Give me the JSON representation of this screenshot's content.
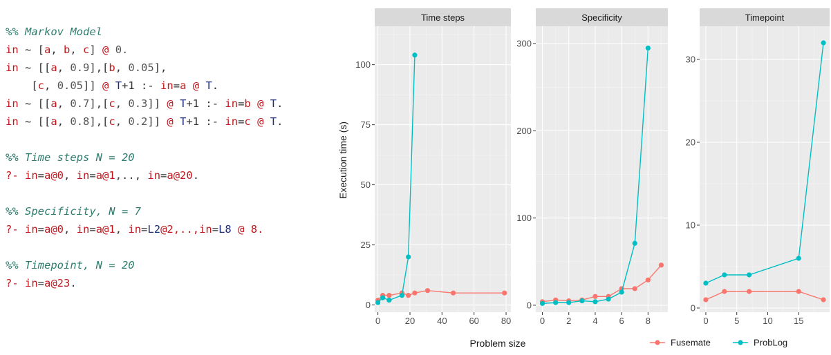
{
  "code": {
    "lines": [
      [
        {
          "t": "%% Markov Model",
          "k": "comment"
        }
      ],
      [
        {
          "t": "in",
          "k": "keyword"
        },
        {
          "t": " ~ [",
          "k": "plain"
        },
        {
          "t": "a",
          "k": "atom"
        },
        {
          "t": ", ",
          "k": "plain"
        },
        {
          "t": "b",
          "k": "atom"
        },
        {
          "t": ", ",
          "k": "plain"
        },
        {
          "t": "c",
          "k": "atom"
        },
        {
          "t": "] ",
          "k": "plain"
        },
        {
          "t": "@",
          "k": "keyword"
        },
        {
          "t": " 0.",
          "k": "number"
        }
      ],
      [
        {
          "t": "in",
          "k": "keyword"
        },
        {
          "t": " ~ [[",
          "k": "plain"
        },
        {
          "t": "a",
          "k": "atom"
        },
        {
          "t": ", ",
          "k": "plain"
        },
        {
          "t": "0.9",
          "k": "number"
        },
        {
          "t": "],[",
          "k": "plain"
        },
        {
          "t": "b",
          "k": "atom"
        },
        {
          "t": ", ",
          "k": "plain"
        },
        {
          "t": "0.05",
          "k": "number"
        },
        {
          "t": "],",
          "k": "plain"
        }
      ],
      [
        {
          "t": "    [",
          "k": "plain"
        },
        {
          "t": "c",
          "k": "atom"
        },
        {
          "t": ", ",
          "k": "plain"
        },
        {
          "t": "0.05",
          "k": "number"
        },
        {
          "t": "]] ",
          "k": "plain"
        },
        {
          "t": "@",
          "k": "keyword"
        },
        {
          "t": " ",
          "k": "plain"
        },
        {
          "t": "T",
          "k": "var"
        },
        {
          "t": "+1 :- ",
          "k": "plain"
        },
        {
          "t": "in",
          "k": "keyword"
        },
        {
          "t": "=",
          "k": "plain"
        },
        {
          "t": "a",
          "k": "atom"
        },
        {
          "t": " ",
          "k": "plain"
        },
        {
          "t": "@",
          "k": "keyword"
        },
        {
          "t": " ",
          "k": "plain"
        },
        {
          "t": "T",
          "k": "var"
        },
        {
          "t": ".",
          "k": "plain"
        }
      ],
      [
        {
          "t": "in",
          "k": "keyword"
        },
        {
          "t": " ~ [[",
          "k": "plain"
        },
        {
          "t": "a",
          "k": "atom"
        },
        {
          "t": ", ",
          "k": "plain"
        },
        {
          "t": "0.7",
          "k": "number"
        },
        {
          "t": "],[",
          "k": "plain"
        },
        {
          "t": "c",
          "k": "atom"
        },
        {
          "t": ", ",
          "k": "plain"
        },
        {
          "t": "0.3",
          "k": "number"
        },
        {
          "t": "]] ",
          "k": "plain"
        },
        {
          "t": "@",
          "k": "keyword"
        },
        {
          "t": " ",
          "k": "plain"
        },
        {
          "t": "T",
          "k": "var"
        },
        {
          "t": "+1 :- ",
          "k": "plain"
        },
        {
          "t": "in",
          "k": "keyword"
        },
        {
          "t": "=",
          "k": "plain"
        },
        {
          "t": "b",
          "k": "atom"
        },
        {
          "t": " ",
          "k": "plain"
        },
        {
          "t": "@",
          "k": "keyword"
        },
        {
          "t": " ",
          "k": "plain"
        },
        {
          "t": "T",
          "k": "var"
        },
        {
          "t": ".",
          "k": "plain"
        }
      ],
      [
        {
          "t": "in",
          "k": "keyword"
        },
        {
          "t": " ~ [[",
          "k": "plain"
        },
        {
          "t": "a",
          "k": "atom"
        },
        {
          "t": ", ",
          "k": "plain"
        },
        {
          "t": "0.8",
          "k": "number"
        },
        {
          "t": "],[",
          "k": "plain"
        },
        {
          "t": "c",
          "k": "atom"
        },
        {
          "t": ", ",
          "k": "plain"
        },
        {
          "t": "0.2",
          "k": "number"
        },
        {
          "t": "]] ",
          "k": "plain"
        },
        {
          "t": "@",
          "k": "keyword"
        },
        {
          "t": " ",
          "k": "plain"
        },
        {
          "t": "T",
          "k": "var"
        },
        {
          "t": "+1 :- ",
          "k": "plain"
        },
        {
          "t": "in",
          "k": "keyword"
        },
        {
          "t": "=",
          "k": "plain"
        },
        {
          "t": "c",
          "k": "atom"
        },
        {
          "t": " ",
          "k": "plain"
        },
        {
          "t": "@",
          "k": "keyword"
        },
        {
          "t": " ",
          "k": "plain"
        },
        {
          "t": "T",
          "k": "var"
        },
        {
          "t": ".",
          "k": "plain"
        }
      ],
      [],
      [
        {
          "t": "%% Time steps N = 20",
          "k": "comment"
        }
      ],
      [
        {
          "t": "?- ",
          "k": "keyword"
        },
        {
          "t": "in",
          "k": "keyword"
        },
        {
          "t": "=",
          "k": "plain"
        },
        {
          "t": "a@0",
          "k": "atom"
        },
        {
          "t": ", ",
          "k": "plain"
        },
        {
          "t": "in",
          "k": "keyword"
        },
        {
          "t": "=",
          "k": "plain"
        },
        {
          "t": "a@1",
          "k": "atom"
        },
        {
          "t": ",.., ",
          "k": "plain"
        },
        {
          "t": "in",
          "k": "keyword"
        },
        {
          "t": "=",
          "k": "plain"
        },
        {
          "t": "a@20",
          "k": "atom"
        },
        {
          "t": ".",
          "k": "plain"
        }
      ],
      [],
      [
        {
          "t": "%% Specificity, N = 7",
          "k": "comment"
        }
      ],
      [
        {
          "t": "?- ",
          "k": "keyword"
        },
        {
          "t": "in",
          "k": "keyword"
        },
        {
          "t": "=",
          "k": "plain"
        },
        {
          "t": "a@0",
          "k": "atom"
        },
        {
          "t": ", ",
          "k": "plain"
        },
        {
          "t": "in",
          "k": "keyword"
        },
        {
          "t": "=",
          "k": "plain"
        },
        {
          "t": "a@1",
          "k": "atom"
        },
        {
          "t": ", ",
          "k": "plain"
        },
        {
          "t": "in",
          "k": "keyword"
        },
        {
          "t": "=",
          "k": "plain"
        },
        {
          "t": "L2",
          "k": "var"
        },
        {
          "t": "@2,..,",
          "k": "atom"
        },
        {
          "t": "in",
          "k": "keyword"
        },
        {
          "t": "=",
          "k": "plain"
        },
        {
          "t": "L8",
          "k": "var"
        },
        {
          "t": " @ 8.",
          "k": "atom"
        }
      ],
      [],
      [
        {
          "t": "%% Timepoint, N = 20",
          "k": "comment"
        }
      ],
      [
        {
          "t": "?- ",
          "k": "keyword"
        },
        {
          "t": "in",
          "k": "keyword"
        },
        {
          "t": "=",
          "k": "plain"
        },
        {
          "t": "a@23",
          "k": "atom"
        },
        {
          "t": ".",
          "k": "plain"
        }
      ]
    ]
  },
  "chart_data": {
    "type": "line",
    "xlabel": "Problem size",
    "ylabel": "Execution time (s)",
    "legend_position": "bottom-right",
    "markers": true,
    "grid": true,
    "series_names": [
      "Fusemate",
      "ProbLog"
    ],
    "colors": {
      "Fusemate": "#f8766d",
      "ProbLog": "#00bfc4"
    },
    "panels": [
      {
        "title": "Time steps",
        "xlim": [
          -2,
          83
        ],
        "ylim": [
          -3,
          116
        ],
        "x_ticks": [
          0,
          20,
          40,
          60,
          80
        ],
        "y_ticks": [
          0,
          25,
          50,
          75,
          100
        ],
        "series": [
          {
            "name": "Fusemate",
            "x": [
              0,
              3,
              7,
              15,
              19,
              23,
              31,
              47,
              79
            ],
            "y": [
              2,
              4,
              4,
              5,
              4,
              5,
              6,
              5,
              5
            ]
          },
          {
            "name": "ProbLog",
            "x": [
              0,
              3,
              7,
              15,
              19,
              23
            ],
            "y": [
              1,
              3,
              2,
              4,
              20,
              104
            ]
          }
        ]
      },
      {
        "title": "Specificity",
        "xlim": [
          -0.5,
          9.5
        ],
        "ylim": [
          -8,
          320
        ],
        "x_ticks": [
          0,
          2,
          4,
          6,
          8
        ],
        "y_ticks": [
          0,
          100,
          200,
          300
        ],
        "series": [
          {
            "name": "Fusemate",
            "x": [
              0,
              1,
              2,
              3,
              4,
              5,
              6,
              7,
              8,
              9
            ],
            "y": [
              4,
              6,
              5,
              6,
              10,
              10,
              19,
              19,
              29,
              46
            ]
          },
          {
            "name": "ProbLog",
            "x": [
              0,
              1,
              2,
              3,
              4,
              5,
              6,
              7,
              8
            ],
            "y": [
              2,
              3,
              3,
              5,
              4,
              7,
              15,
              71,
              295
            ]
          }
        ]
      },
      {
        "title": "Timepoint",
        "xlim": [
          -1,
          20
        ],
        "ylim": [
          -0.5,
          34
        ],
        "x_ticks": [
          0,
          5,
          10,
          15
        ],
        "y_ticks": [
          0,
          10,
          20,
          30
        ],
        "series": [
          {
            "name": "Fusemate",
            "x": [
              0,
              3,
              7,
              15,
              19
            ],
            "y": [
              1,
              2,
              2,
              2,
              1
            ]
          },
          {
            "name": "ProbLog",
            "x": [
              0,
              3,
              7,
              15,
              19
            ],
            "y": [
              3,
              4,
              4,
              6,
              32
            ]
          }
        ]
      }
    ]
  }
}
